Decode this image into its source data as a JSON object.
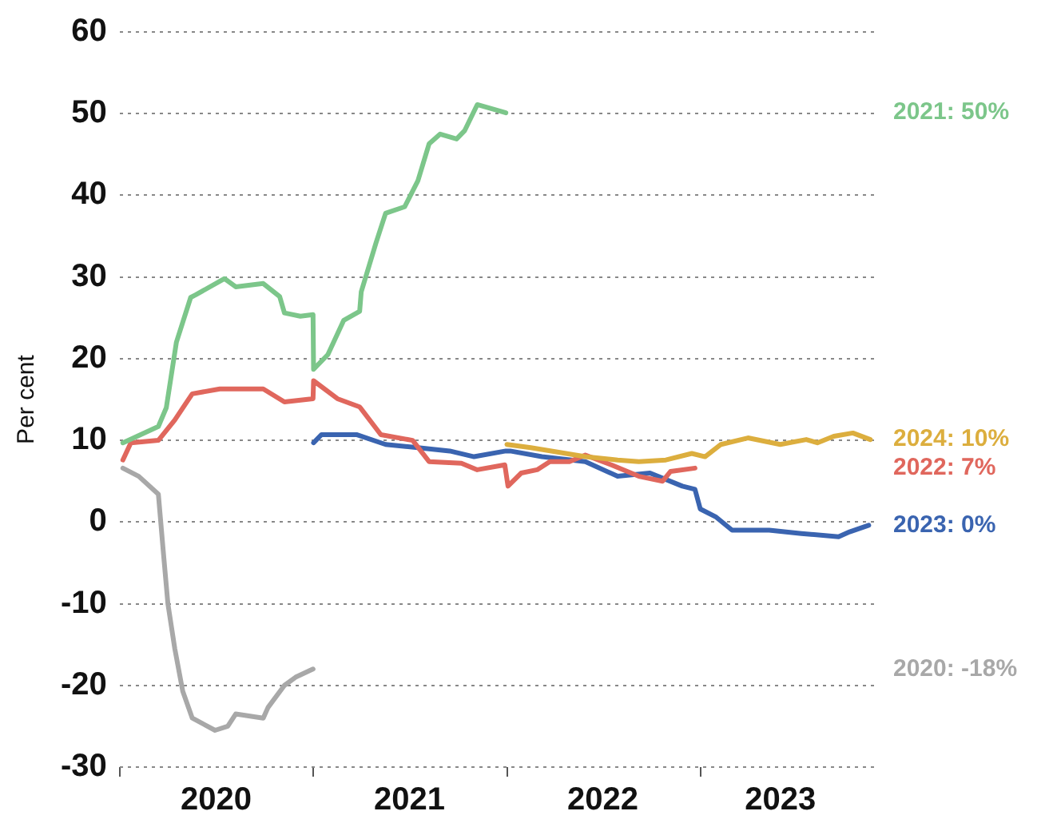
{
  "chart_data": {
    "type": "line",
    "ylabel": "Per cent",
    "grid": "y",
    "legend": false,
    "line_style": "solid",
    "xlim": [
      "2020-01-01",
      "2023-11-25"
    ],
    "xticks": [
      {
        "value": "2020-01-01",
        "label": null
      },
      {
        "value": "2020-07-01",
        "label": "2020"
      },
      {
        "value": "2021-01-01",
        "label": null
      },
      {
        "value": "2021-07-01",
        "label": "2021"
      },
      {
        "value": "2022-01-01",
        "label": null
      },
      {
        "value": "2022-07-01",
        "label": "2022"
      },
      {
        "value": "2023-01-01",
        "label": null
      },
      {
        "value": "2023-06-01",
        "label": "2023"
      }
    ],
    "ylim": [
      -30,
      60
    ],
    "yticks": [
      -30,
      -20,
      -10,
      0,
      10,
      20,
      30,
      40,
      50,
      60
    ],
    "series": [
      {
        "name": "2021: 50%",
        "color": "#7cc68a",
        "x": [
          "2020-01-07",
          "2020-03-14",
          "2020-03-29",
          "2020-04-17",
          "2020-05-14",
          "2020-05-23",
          "2020-07-17",
          "2020-08-07",
          "2020-09-28",
          "2020-10-29",
          "2020-11-07",
          "2020-12-07",
          "2020-12-31",
          "2021-01-01",
          "2021-01-28",
          "2021-02-27",
          "2021-03-29",
          "2021-04-01",
          "2021-04-29",
          "2021-05-17",
          "2021-06-22",
          "2021-07-17",
          "2021-08-07",
          "2021-08-28",
          "2021-09-28",
          "2021-10-13",
          "2021-11-06",
          "2021-12-30"
        ],
        "values": [
          9.7,
          11.7,
          14,
          22,
          27.5,
          27.8,
          29.8,
          28.8,
          29.2,
          27.6,
          25.6,
          25.2,
          25.4,
          18.7,
          20.5,
          24.7,
          25.8,
          28.2,
          34.2,
          37.8,
          38.6,
          41.8,
          46.3,
          47.5,
          46.9,
          47.9,
          51.1,
          50.1
        ]
      },
      {
        "name": "2024: 10%",
        "color": "#dcae3e",
        "x": [
          "2022-01-01",
          "2022-02-15",
          "2022-05-29",
          "2022-07-29",
          "2022-09-07",
          "2022-10-28",
          "2022-12-16",
          "2023-01-10",
          "2023-02-09",
          "2023-04-01",
          "2023-06-01",
          "2023-07-20",
          "2023-08-10",
          "2023-09-10",
          "2023-10-16",
          "2023-11-18"
        ],
        "values": [
          9.5,
          9.1,
          8.0,
          7.6,
          7.4,
          7.6,
          8.4,
          8.0,
          9.5,
          10.3,
          9.5,
          10.1,
          9.7,
          10.5,
          10.9,
          10.1
        ]
      },
      {
        "name": "2022: 7%",
        "color": "#e0675d",
        "x": [
          "2020-01-07",
          "2020-01-22",
          "2020-03-14",
          "2020-04-14",
          "2020-05-17",
          "2020-07-08",
          "2020-09-28",
          "2020-11-07",
          "2020-12-31",
          "2021-01-01",
          "2021-02-15",
          "2021-03-29",
          "2021-05-08",
          "2021-07-07",
          "2021-08-07",
          "2021-10-07",
          "2021-11-06",
          "2021-12-28",
          "2022-01-03",
          "2022-01-28",
          "2022-02-27",
          "2022-03-23",
          "2022-04-29",
          "2022-05-29",
          "2022-07-17",
          "2022-09-07",
          "2022-10-22",
          "2022-11-06",
          "2022-12-22"
        ],
        "values": [
          7.6,
          9.7,
          10,
          12.5,
          15.7,
          16.3,
          16.3,
          14.7,
          15.1,
          17.3,
          15.1,
          14.1,
          10.7,
          10,
          7.4,
          7.2,
          6.4,
          7.0,
          4.4,
          6.0,
          6.4,
          7.4,
          7.4,
          8.2,
          7.0,
          5.6,
          5.0,
          6.2,
          6.6
        ]
      },
      {
        "name": "2023: 0%",
        "color": "#3a64b0",
        "x": [
          "2021-01-01",
          "2021-01-16",
          "2021-03-23",
          "2021-05-17",
          "2021-07-17",
          "2021-09-15",
          "2021-10-31",
          "2021-12-30",
          "2022-01-07",
          "2022-03-08",
          "2022-05-29",
          "2022-07-29",
          "2022-09-28",
          "2022-11-28",
          "2022-12-22",
          "2023-01-01",
          "2023-01-31",
          "2023-03-02",
          "2023-05-11",
          "2023-07-11",
          "2023-09-19",
          "2023-10-10",
          "2023-11-15"
        ],
        "values": [
          9.7,
          10.7,
          10.7,
          9.5,
          9.1,
          8.7,
          8.0,
          8.7,
          8.7,
          8.0,
          7.4,
          5.6,
          6.0,
          4.4,
          4.0,
          1.6,
          0.6,
          -1.0,
          -1.0,
          -1.4,
          -1.8,
          -1.2,
          -0.4
        ]
      },
      {
        "name": "2020: -18%",
        "color": "#a8a8a8",
        "x": [
          "2020-01-07",
          "2020-02-06",
          "2020-03-14",
          "2020-03-23",
          "2020-04-01",
          "2020-04-14",
          "2020-04-29",
          "2020-05-17",
          "2020-06-29",
          "2020-07-23",
          "2020-08-07",
          "2020-09-28",
          "2020-10-07",
          "2020-11-07",
          "2020-11-28",
          "2020-12-31"
        ],
        "values": [
          6.6,
          5.6,
          3.4,
          -3.4,
          -10,
          -15.5,
          -20.7,
          -24,
          -25.5,
          -25,
          -23.5,
          -24,
          -22.7,
          -20,
          -19,
          -18
        ]
      }
    ]
  }
}
